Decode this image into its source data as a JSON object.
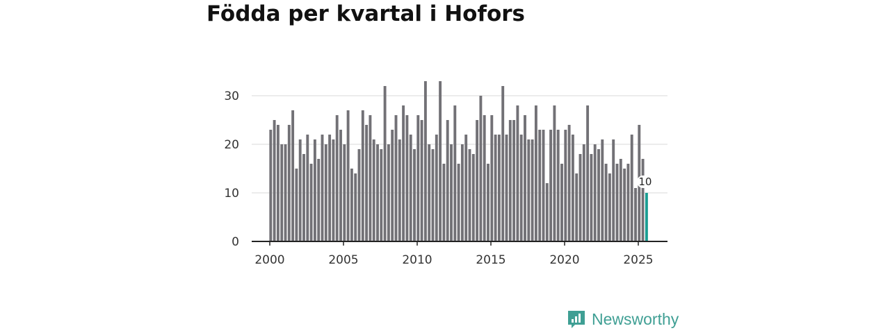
{
  "title": "Födda per kvartal i Hofors",
  "logo": {
    "text": "Newsworthy",
    "icon": "newsworthy-bar-chart-icon",
    "color": "#3f9f94"
  },
  "colors": {
    "bar": "#727176",
    "highlight": "#1a9e93",
    "grid": "#d9d9d9",
    "axis": "#222222"
  },
  "chart_data": {
    "type": "bar",
    "title": "Födda per kvartal i Hofors",
    "xlabel": "",
    "ylabel": "",
    "ylim": [
      0,
      35
    ],
    "yticks": [
      0,
      10,
      20,
      30
    ],
    "xticks": [
      "2000",
      "2005",
      "2010",
      "2015",
      "2020",
      "2025"
    ],
    "grid": true,
    "start": "2000 Q1",
    "highlight_last": true,
    "last_value_label": "10",
    "values": [
      23,
      25,
      24,
      20,
      20,
      24,
      27,
      15,
      21,
      18,
      22,
      16,
      21,
      17,
      22,
      20,
      22,
      21,
      26,
      23,
      20,
      27,
      15,
      14,
      19,
      27,
      24,
      26,
      21,
      20,
      19,
      32,
      20,
      23,
      26,
      21,
      28,
      26,
      22,
      19,
      26,
      25,
      33,
      20,
      19,
      22,
      33,
      16,
      25,
      20,
      28,
      16,
      20,
      22,
      19,
      18,
      25,
      30,
      26,
      16,
      26,
      22,
      22,
      32,
      22,
      25,
      25,
      28,
      22,
      26,
      21,
      21,
      28,
      23,
      23,
      12,
      23,
      28,
      23,
      16,
      23,
      24,
      22,
      14,
      18,
      20,
      28,
      18,
      20,
      19,
      21,
      16,
      14,
      21,
      16,
      17,
      15,
      16,
      22,
      11,
      24,
      17,
      10
    ]
  }
}
